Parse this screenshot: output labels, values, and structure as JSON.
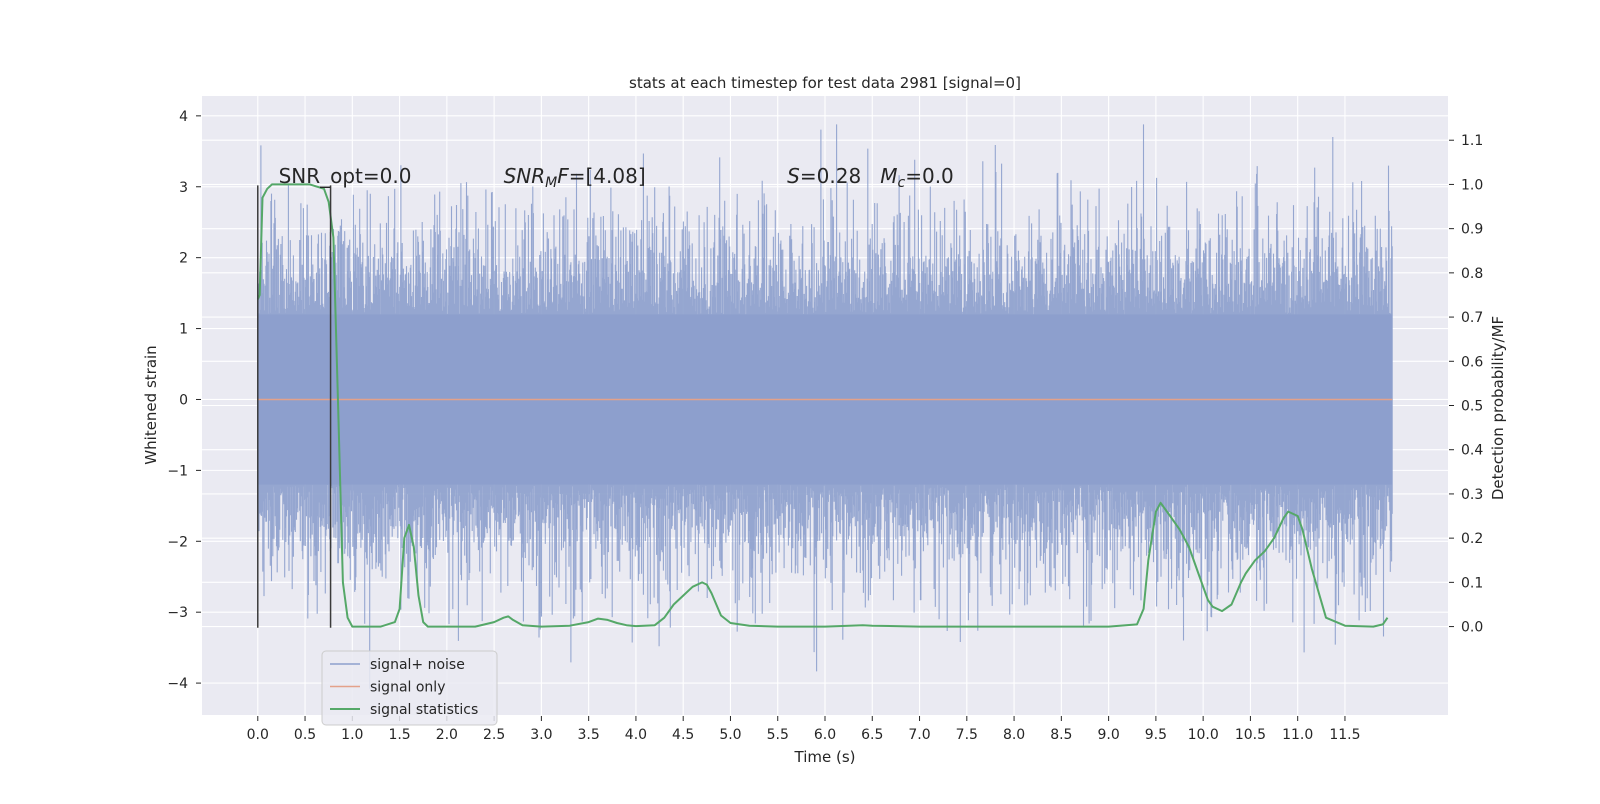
{
  "chart_data": {
    "type": "line",
    "title": "stats at each timestep for test data 2981 [signal=0]",
    "xlabel": "Time (s)",
    "ylabel_left": "Whitened strain",
    "ylabel_right": "Detection probability/MF",
    "xlim": [
      -0.59,
      12.59
    ],
    "ylim_left": [
      -4.45,
      4.28
    ],
    "ylim_right": [
      -0.2,
      1.2
    ],
    "x_ticks": [
      0.0,
      0.5,
      1.0,
      1.5,
      2.0,
      2.5,
      3.0,
      3.5,
      4.0,
      4.5,
      5.0,
      5.5,
      6.0,
      6.5,
      7.0,
      7.5,
      8.0,
      8.5,
      9.0,
      9.5,
      10.0,
      10.5,
      11.0,
      11.5
    ],
    "x_tick_labels": [
      "0.0",
      "0.5",
      "1.0",
      "1.5",
      "2.0",
      "2.5",
      "3.0",
      "3.5",
      "4.0",
      "4.5",
      "5.0",
      "5.5",
      "6.0",
      "6.5",
      "7.0",
      "7.5",
      "8.0",
      "8.5",
      "9.0",
      "9.5",
      "10.0",
      "10.5",
      "11.0",
      "11.5"
    ],
    "y_ticks_left": [
      4,
      3,
      2,
      1,
      0,
      -1,
      -2,
      -3,
      -4
    ],
    "y_tick_labels_left": [
      "4",
      "3",
      "2",
      "1",
      "0",
      "−1",
      "−2",
      "−3",
      "−4"
    ],
    "y_ticks_right": [
      1.1,
      1.0,
      0.9,
      0.8,
      0.7,
      0.6,
      0.5,
      0.4,
      0.3,
      0.2,
      0.1,
      0.0
    ],
    "y_tick_labels_right": [
      "1.1",
      "1.0",
      "0.9",
      "0.8",
      "0.7",
      "0.6",
      "0.5",
      "0.4",
      "0.3",
      "0.2",
      "0.1",
      "0.0"
    ],
    "grid": true,
    "legend_position": "lower-left",
    "series": [
      {
        "name": "signal+ noise",
        "axis": "left",
        "color": "#8c9fcc",
        "style": "dense-noise",
        "x_range": [
          0.0,
          12.0
        ],
        "y_range": [
          -4.08,
          3.88
        ],
        "core_amplitude": 1.2
      },
      {
        "name": "signal only",
        "axis": "left",
        "color": "#e4a18a",
        "x": [
          0.0,
          12.0
        ],
        "y": [
          0.0,
          0.0
        ]
      },
      {
        "name": "signal statistics",
        "axis": "right",
        "color": "#55a868",
        "x": [
          0.0,
          0.02,
          0.05,
          0.1,
          0.15,
          0.25,
          0.4,
          0.55,
          0.7,
          0.75,
          0.8,
          0.85,
          0.9,
          0.95,
          1.0,
          1.1,
          1.3,
          1.45,
          1.5,
          1.55,
          1.6,
          1.65,
          1.7,
          1.75,
          1.8,
          1.85,
          2.0,
          2.3,
          2.5,
          2.6,
          2.65,
          2.7,
          2.8,
          3.0,
          3.3,
          3.5,
          3.6,
          3.7,
          3.8,
          3.9,
          4.0,
          4.2,
          4.3,
          4.4,
          4.5,
          4.6,
          4.7,
          4.75,
          4.8,
          4.85,
          4.9,
          5.0,
          5.2,
          5.5,
          6.0,
          6.4,
          6.5,
          7.0,
          7.5,
          8.0,
          9.0,
          9.3,
          9.37,
          9.42,
          9.5,
          9.55,
          9.65,
          9.75,
          9.85,
          9.95,
          10.05,
          10.1,
          10.2,
          10.3,
          10.4,
          10.45,
          10.55,
          10.65,
          10.75,
          10.85,
          10.9,
          11.0,
          11.05,
          11.15,
          11.3,
          11.5,
          11.8,
          11.9,
          11.95
        ],
        "y": [
          0.74,
          0.75,
          0.97,
          0.99,
          1.0,
          1.0,
          1.0,
          1.0,
          0.99,
          0.96,
          0.88,
          0.5,
          0.1,
          0.02,
          0.0,
          0.0,
          0.0,
          0.01,
          0.04,
          0.2,
          0.23,
          0.18,
          0.07,
          0.01,
          0.0,
          0.0,
          0.0,
          0.0,
          0.01,
          0.02,
          0.023,
          0.015,
          0.003,
          0.0,
          0.002,
          0.01,
          0.018,
          0.015,
          0.008,
          0.003,
          0.001,
          0.003,
          0.02,
          0.05,
          0.07,
          0.09,
          0.1,
          0.095,
          0.075,
          0.05,
          0.025,
          0.008,
          0.002,
          0.0,
          0.0,
          0.003,
          0.002,
          0.0,
          0.0,
          0.0,
          0.0,
          0.005,
          0.04,
          0.15,
          0.26,
          0.28,
          0.25,
          0.22,
          0.18,
          0.12,
          0.06,
          0.045,
          0.035,
          0.05,
          0.1,
          0.12,
          0.15,
          0.17,
          0.2,
          0.245,
          0.26,
          0.25,
          0.22,
          0.13,
          0.02,
          0.002,
          0.0,
          0.005,
          0.02
        ]
      }
    ],
    "vlines": [
      0.0,
      0.77
    ],
    "annotations": [
      {
        "parts": [
          {
            "text": "SNR_opt=0.0"
          }
        ],
        "x": 0.22,
        "y": 3.05
      },
      {
        "parts": [
          {
            "text": "SNR",
            "style": "italic"
          },
          {
            "text": "M",
            "style": "italic-sub"
          },
          {
            "text": "F",
            "style": "italic"
          },
          {
            "text": "=[4.08]"
          }
        ],
        "x": 2.6,
        "y": 3.05
      },
      {
        "parts": [
          {
            "text": "S",
            "style": "italic"
          },
          {
            "text": "=0.28   "
          },
          {
            "text": "M",
            "style": "italic"
          },
          {
            "text": "c",
            "style": "italic-sub"
          },
          {
            "text": "=0.0"
          }
        ],
        "x": 5.6,
        "y": 3.05
      }
    ],
    "colors": {
      "plot_background": "#eaeaf2",
      "grid": "#ffffff",
      "vline": "#3b3b3b"
    }
  }
}
